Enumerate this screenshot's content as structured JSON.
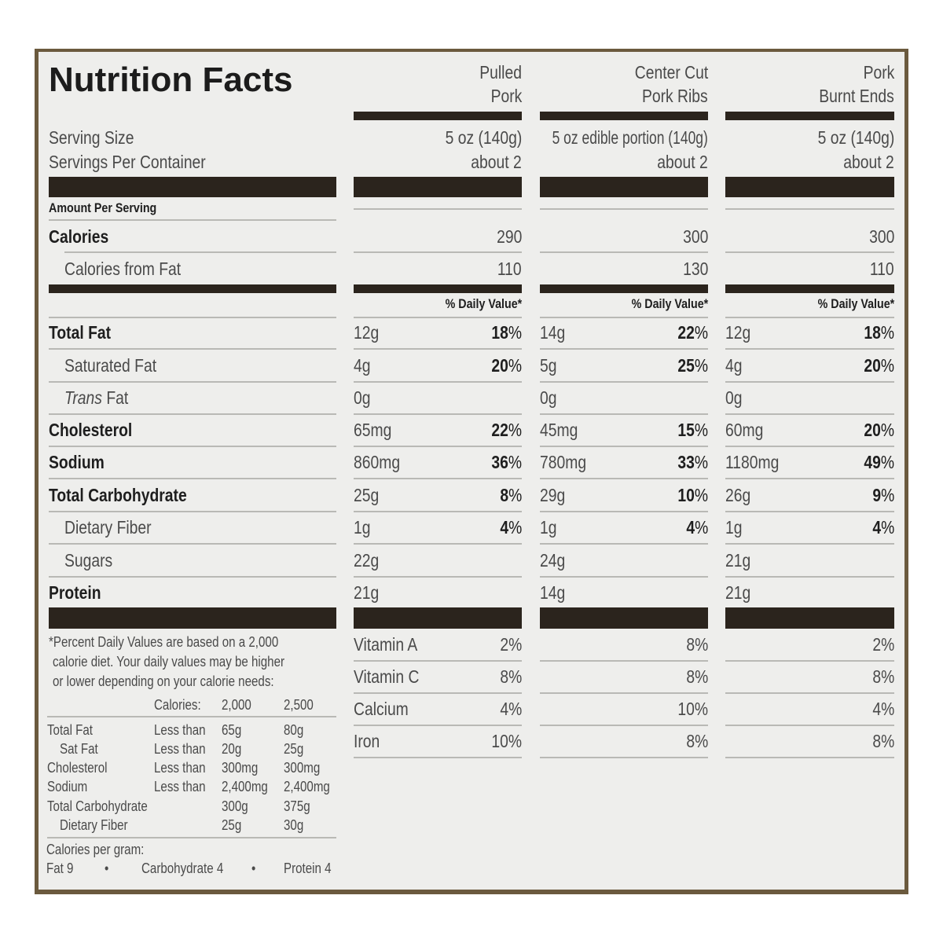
{
  "title": "Nutrition Facts",
  "products": [
    {
      "name_lines": [
        "Pulled",
        "Pork"
      ],
      "serving_size": "5 oz (140g)",
      "servings": "about 2",
      "calories": "290",
      "calories_from_fat": "110",
      "nutrients": [
        [
          "12g",
          "18"
        ],
        [
          "4g",
          "20"
        ],
        [
          "0g",
          ""
        ],
        [
          "65mg",
          "22"
        ],
        [
          "860mg",
          "36"
        ],
        [
          "25g",
          "8"
        ],
        [
          "1g",
          "4"
        ],
        [
          "22g",
          ""
        ],
        [
          "21g",
          ""
        ]
      ],
      "vitamins": [
        "2%",
        "8%",
        "4%",
        "10%"
      ]
    },
    {
      "name_lines": [
        "Center Cut",
        "Pork Ribs"
      ],
      "serving_size": "5 oz edible portion (140g)",
      "servings": "about 2",
      "calories": "300",
      "calories_from_fat": "130",
      "nutrients": [
        [
          "14g",
          "22"
        ],
        [
          "5g",
          "25"
        ],
        [
          "0g",
          ""
        ],
        [
          "45mg",
          "15"
        ],
        [
          "780mg",
          "33"
        ],
        [
          "29g",
          "10"
        ],
        [
          "1g",
          "4"
        ],
        [
          "24g",
          ""
        ],
        [
          "14g",
          ""
        ]
      ],
      "vitamins": [
        "8%",
        "8%",
        "10%",
        "8%"
      ]
    },
    {
      "name_lines": [
        "Pork",
        "Burnt Ends"
      ],
      "serving_size": "5 oz (140g)",
      "servings": "about 2",
      "calories": "300",
      "calories_from_fat": "110",
      "nutrients": [
        [
          "12g",
          "18"
        ],
        [
          "4g",
          "20"
        ],
        [
          "0g",
          ""
        ],
        [
          "60mg",
          "20"
        ],
        [
          "1180mg",
          "49"
        ],
        [
          "26g",
          "9"
        ],
        [
          "1g",
          "4"
        ],
        [
          "21g",
          ""
        ],
        [
          "21g",
          ""
        ]
      ],
      "vitamins": [
        "2%",
        "8%",
        "4%",
        "8%"
      ]
    }
  ],
  "labels": {
    "serving_size": "Serving Size",
    "servings_per_container": "Servings Per Container",
    "amount_per_serving": "Amount Per Serving",
    "calories": "Calories",
    "calories_from_fat": "Calories from Fat",
    "daily_value": "% Daily Value*",
    "percent": "%"
  },
  "nutrients": [
    {
      "name": "Total Fat",
      "bold": true,
      "indent": false
    },
    {
      "name": "Saturated Fat",
      "bold": false,
      "indent": true
    },
    {
      "name": "Trans",
      "suffix": " Fat",
      "bold": false,
      "indent": true,
      "italic": true
    },
    {
      "name": "Cholesterol",
      "bold": true,
      "indent": false
    },
    {
      "name": "Sodium",
      "bold": true,
      "indent": false
    },
    {
      "name": "Total Carbohydrate",
      "bold": true,
      "indent": false
    },
    {
      "name": "Dietary Fiber",
      "bold": false,
      "indent": true
    },
    {
      "name": "Sugars",
      "bold": false,
      "indent": true
    },
    {
      "name": "Protein",
      "bold": true,
      "indent": false
    }
  ],
  "vitamins": [
    "Vitamin A",
    "Vitamin C",
    "Calcium",
    "Iron"
  ],
  "footnote": {
    "lines": [
      "*Percent Daily Values are based on a 2,000",
      "calorie diet. Your daily values may be higher",
      "or lower depending on your calorie needs:"
    ],
    "header": [
      "Calories:",
      "2,000",
      "2,500"
    ],
    "rows": [
      [
        "Total Fat",
        "Less than",
        "65g",
        "80g",
        false
      ],
      [
        "Sat Fat",
        "Less than",
        "20g",
        "25g",
        true
      ],
      [
        "Cholesterol",
        "Less than",
        "300mg",
        "300mg",
        false
      ],
      [
        "Sodium",
        "Less than",
        "2,400mg",
        "2,400mg",
        false
      ],
      [
        "Total Carbohydrate",
        "",
        "300g",
        "375g",
        false
      ],
      [
        "Dietary Fiber",
        "",
        "25g",
        "30g",
        true
      ]
    ],
    "per_gram_label": "Calories per gram:",
    "per_gram": [
      "Fat 9",
      "•",
      "Carbohydrate 4",
      "•",
      "Protein 4"
    ]
  },
  "colors": {
    "bar": "#2b241d",
    "text": "#4a4a4a",
    "panel": "#eeeeec",
    "border": "#6b5a3e"
  }
}
